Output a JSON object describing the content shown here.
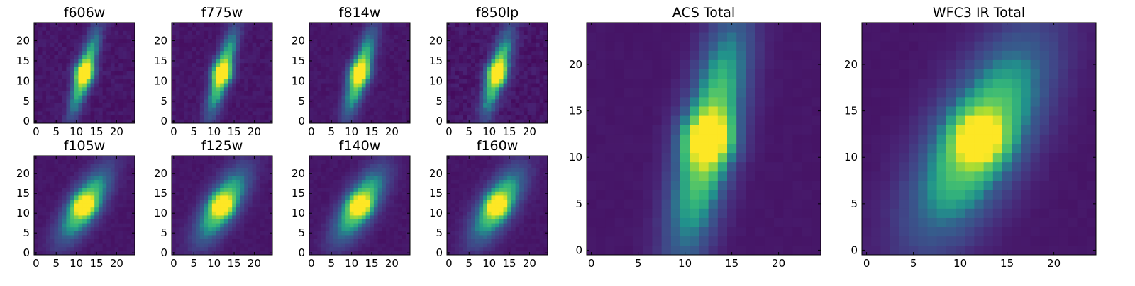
{
  "colormap": {
    "name": "viridis",
    "low": "#440154",
    "mid": "#21918c",
    "high": "#fde725"
  },
  "chart_data": [
    {
      "type": "heatmap",
      "title": "f606w",
      "grid_size": 25,
      "x_ticks": [
        0,
        5,
        10,
        15,
        20
      ],
      "y_ticks": [
        0,
        5,
        10,
        15,
        20
      ],
      "xlim": [
        0,
        25
      ],
      "ylim": [
        0,
        25
      ],
      "source": {
        "center": [
          12,
          12
        ],
        "width": 1.4,
        "length": 7.5,
        "tilt": 0.28,
        "peak": 1.0,
        "noise": 0.07
      },
      "grid": false
    },
    {
      "type": "heatmap",
      "title": "f775w",
      "grid_size": 25,
      "x_ticks": [
        0,
        5,
        10,
        15,
        20
      ],
      "y_ticks": [
        0,
        5,
        10,
        15,
        20
      ],
      "xlim": [
        0,
        25
      ],
      "ylim": [
        0,
        25
      ],
      "source": {
        "center": [
          12,
          12
        ],
        "width": 1.5,
        "length": 7.5,
        "tilt": 0.28,
        "peak": 1.0,
        "noise": 0.06
      },
      "grid": false
    },
    {
      "type": "heatmap",
      "title": "f814w",
      "grid_size": 25,
      "x_ticks": [
        0,
        5,
        10,
        15,
        20
      ],
      "y_ticks": [
        0,
        5,
        10,
        15,
        20
      ],
      "xlim": [
        0,
        25
      ],
      "ylim": [
        0,
        25
      ],
      "source": {
        "center": [
          12,
          12
        ],
        "width": 1.6,
        "length": 7.5,
        "tilt": 0.28,
        "peak": 1.0,
        "noise": 0.05
      },
      "grid": false
    },
    {
      "type": "heatmap",
      "title": "f850lp",
      "grid_size": 25,
      "x_ticks": [
        0,
        5,
        10,
        15,
        20
      ],
      "y_ticks": [
        0,
        5,
        10,
        15,
        20
      ],
      "xlim": [
        0,
        25
      ],
      "ylim": [
        0,
        25
      ],
      "source": {
        "center": [
          12,
          12
        ],
        "width": 1.6,
        "length": 7.5,
        "tilt": 0.28,
        "peak": 1.0,
        "noise": 0.09
      },
      "grid": false
    },
    {
      "type": "heatmap",
      "title": "f105w",
      "grid_size": 25,
      "x_ticks": [
        0,
        5,
        10,
        15,
        20
      ],
      "y_ticks": [
        0,
        5,
        10,
        15,
        20
      ],
      "xlim": [
        0,
        25
      ],
      "ylim": [
        0,
        25
      ],
      "source": {
        "center": [
          12,
          12
        ],
        "width": 2.6,
        "length": 7.0,
        "tilt": 0.55,
        "peak": 1.0,
        "noise": 0.04
      },
      "grid": false
    },
    {
      "type": "heatmap",
      "title": "f125w",
      "grid_size": 25,
      "x_ticks": [
        0,
        5,
        10,
        15,
        20
      ],
      "y_ticks": [
        0,
        5,
        10,
        15,
        20
      ],
      "xlim": [
        0,
        25
      ],
      "ylim": [
        0,
        25
      ],
      "source": {
        "center": [
          12,
          12
        ],
        "width": 2.7,
        "length": 7.0,
        "tilt": 0.55,
        "peak": 1.0,
        "noise": 0.04
      },
      "grid": false
    },
    {
      "type": "heatmap",
      "title": "f140w",
      "grid_size": 25,
      "x_ticks": [
        0,
        5,
        10,
        15,
        20
      ],
      "y_ticks": [
        0,
        5,
        10,
        15,
        20
      ],
      "xlim": [
        0,
        25
      ],
      "ylim": [
        0,
        25
      ],
      "source": {
        "center": [
          12,
          12
        ],
        "width": 2.7,
        "length": 7.0,
        "tilt": 0.55,
        "peak": 1.0,
        "noise": 0.04
      },
      "grid": false
    },
    {
      "type": "heatmap",
      "title": "f160w",
      "grid_size": 25,
      "x_ticks": [
        0,
        5,
        10,
        15,
        20
      ],
      "y_ticks": [
        0,
        5,
        10,
        15,
        20
      ],
      "xlim": [
        0,
        25
      ],
      "ylim": [
        0,
        25
      ],
      "source": {
        "center": [
          12,
          12
        ],
        "width": 2.8,
        "length": 7.0,
        "tilt": 0.55,
        "peak": 1.0,
        "noise": 0.04
      },
      "grid": false
    },
    {
      "type": "heatmap",
      "title": "ACS Total",
      "grid_size": 25,
      "x_ticks": [
        0,
        5,
        10,
        15,
        20
      ],
      "y_ticks": [
        0,
        5,
        10,
        15,
        20
      ],
      "xlim": [
        0,
        25
      ],
      "ylim": [
        0,
        25
      ],
      "source": {
        "center": [
          12.5,
          12
        ],
        "width": 2.0,
        "length": 9.0,
        "tilt": 0.22,
        "peak": 1.0,
        "noise": 0.02
      },
      "grid": false
    },
    {
      "type": "heatmap",
      "title": "WFC3 IR Total",
      "grid_size": 25,
      "x_ticks": [
        0,
        5,
        10,
        15,
        20
      ],
      "y_ticks": [
        0,
        5,
        10,
        15,
        20
      ],
      "xlim": [
        0,
        25
      ],
      "ylim": [
        0,
        25
      ],
      "source": {
        "center": [
          12,
          12
        ],
        "width": 3.2,
        "length": 8.0,
        "tilt": 0.5,
        "peak": 1.0,
        "noise": 0.02
      },
      "grid": false
    }
  ]
}
